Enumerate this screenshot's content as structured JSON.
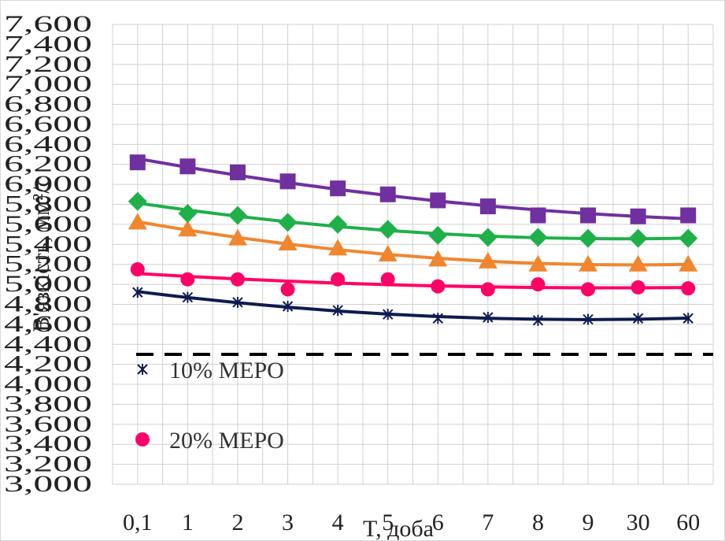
{
  "chart_data": {
    "type": "line",
    "xlabel": "T, доба",
    "ylabel": "В'язкість, мм²/с",
    "categories": [
      "0,1",
      "1",
      "2",
      "3",
      "4",
      "5",
      "6",
      "7",
      "8",
      "9",
      "30",
      "60"
    ],
    "ylim": [
      3.0,
      7.6
    ],
    "y_ticks": [
      "3,000",
      "3,200",
      "3,400",
      "3,600",
      "3,800",
      "4,000",
      "4,200",
      "4,400",
      "4,600",
      "4,800",
      "5,000",
      "5,200",
      "5,400",
      "5,600",
      "5,800",
      "6,000",
      "6,200",
      "6,400",
      "6,600",
      "6,800",
      "7,000",
      "7,200",
      "7,400",
      "7,600"
    ],
    "grid": true,
    "legend_position": "left",
    "reference_line": {
      "value": 4.3,
      "color": "#000000",
      "style": "dashed"
    },
    "series": [
      {
        "name": "10% MEPO",
        "marker": "star",
        "color": "#0d1b4f",
        "values": [
          4.92,
          4.87,
          4.82,
          4.78,
          4.74,
          4.7,
          4.66,
          4.67,
          4.64,
          4.65,
          4.66,
          4.66
        ]
      },
      {
        "name": "20% MEPO",
        "marker": "circle",
        "color": "#ff0066",
        "values": [
          5.15,
          5.05,
          5.05,
          4.95,
          5.05,
          5.05,
          4.98,
          4.95,
          5.0,
          4.95,
          4.97,
          4.96
        ]
      },
      {
        "name": "",
        "marker": "triangle",
        "color": "#f0862e",
        "values": [
          5.62,
          5.55,
          5.46,
          5.41,
          5.36,
          5.3,
          5.25,
          5.23,
          5.2,
          5.2,
          5.2,
          5.2
        ]
      },
      {
        "name": "",
        "marker": "diamond",
        "color": "#1fb04a",
        "values": [
          5.83,
          5.71,
          5.69,
          5.62,
          5.6,
          5.55,
          5.49,
          5.47,
          5.47,
          5.46,
          5.46,
          5.46
        ]
      },
      {
        "name": "",
        "marker": "square",
        "color": "#7030a0",
        "values": [
          6.22,
          6.18,
          6.12,
          6.03,
          5.96,
          5.9,
          5.84,
          5.78,
          5.69,
          5.69,
          5.68,
          5.69
        ]
      }
    ]
  }
}
